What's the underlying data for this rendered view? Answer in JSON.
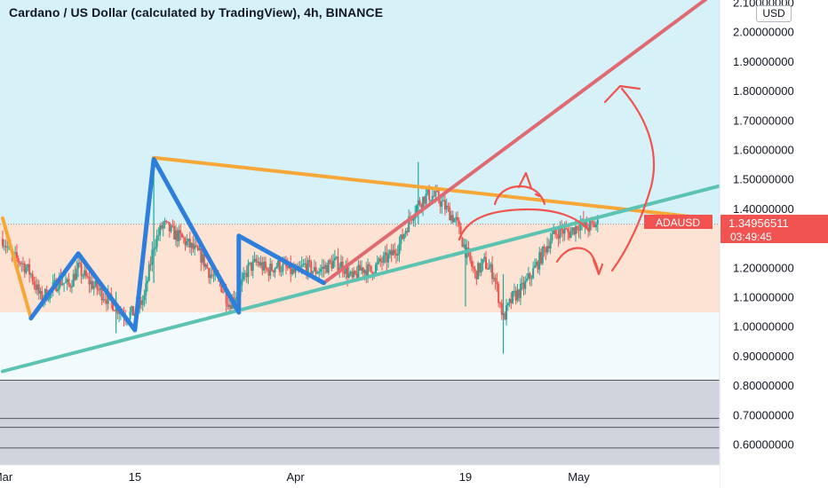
{
  "title": "Cardano / US Dollar (calculated by TradingView), 4h, BINANCE",
  "currency": "USD",
  "symbol_tag": "ADAUSD",
  "last_price": "1.34956511",
  "countdown": "03:49:45",
  "colors": {
    "band_blue": "#d6f2f8",
    "band_peach": "#fde3d3",
    "band_white": "#f1fbfd",
    "band_gray": "#d1d4dc",
    "candle_up": "#26a69a",
    "candle_down": "#ef5350",
    "tri_orange": "#f7a738",
    "blue_zigzag": "#2d7fdb",
    "teal_line": "#5cc2b1",
    "red_line": "#e06a71",
    "hand_red": "#f0544f",
    "price_tag": "#f05350"
  },
  "chart_data": {
    "type": "candlestick",
    "title": "Cardano / US Dollar (calculated by TradingView), 4h, BINANCE",
    "xlabel": "",
    "ylabel": "",
    "x_ticks": [
      "Mar",
      "15",
      "Apr",
      "19",
      "May"
    ],
    "y_ticks": [
      "0.60000000",
      "0.70000000",
      "0.80000000",
      "0.90000000",
      "1.00000000",
      "1.10000000",
      "1.20000000",
      "1.30000000",
      "1.40000000",
      "1.50000000",
      "1.60000000",
      "1.70000000",
      "1.80000000",
      "1.90000000",
      "2.00000000",
      "2.10000000"
    ],
    "ylim": [
      0.51,
      2.15
    ],
    "xlim": [
      "2021-03-01",
      "2021-05-16"
    ],
    "grid": false,
    "zones": [
      {
        "from": 1.05,
        "to": 2.15,
        "color": "#d6f2f8"
      },
      {
        "from": 1.05,
        "to": 1.35,
        "color": "#fde3d3"
      },
      {
        "from": 0.82,
        "to": 1.05,
        "color": "#f1fbfd"
      },
      {
        "from": 0.51,
        "to": 0.82,
        "color": "#d1d4dc"
      }
    ],
    "horizontal_lines": [
      0.82,
      0.69,
      0.66,
      0.59
    ],
    "price_path": [
      [
        "2021-03-01",
        1.3
      ],
      [
        "2021-03-02",
        1.24
      ],
      [
        "2021-03-03",
        1.22
      ],
      [
        "2021-03-04",
        1.18
      ],
      [
        "2021-03-05",
        1.1
      ],
      [
        "2021-03-06",
        1.12
      ],
      [
        "2021-03-07",
        1.16
      ],
      [
        "2021-03-08",
        1.14
      ],
      [
        "2021-03-09",
        1.2
      ],
      [
        "2021-03-10",
        1.16
      ],
      [
        "2021-03-11",
        1.13
      ],
      [
        "2021-03-12",
        1.1
      ],
      [
        "2021-03-13",
        1.07
      ],
      [
        "2021-03-14",
        1.04
      ],
      [
        "2021-03-15",
        1.05
      ],
      [
        "2021-03-16",
        1.1
      ],
      [
        "2021-03-17",
        1.28
      ],
      [
        "2021-03-18",
        1.35
      ],
      [
        "2021-03-19",
        1.32
      ],
      [
        "2021-03-20",
        1.3
      ],
      [
        "2021-03-21",
        1.27
      ],
      [
        "2021-03-22",
        1.24
      ],
      [
        "2021-03-23",
        1.18
      ],
      [
        "2021-03-24",
        1.15
      ],
      [
        "2021-03-25",
        1.08
      ],
      [
        "2021-03-26",
        1.12
      ],
      [
        "2021-03-27",
        1.2
      ],
      [
        "2021-03-28",
        1.22
      ],
      [
        "2021-03-29",
        1.19
      ],
      [
        "2021-03-30",
        1.21
      ],
      [
        "2021-03-31",
        1.2
      ],
      [
        "2021-04-01",
        1.18
      ],
      [
        "2021-04-02",
        1.21
      ],
      [
        "2021-04-03",
        1.19
      ],
      [
        "2021-04-04",
        1.2
      ],
      [
        "2021-04-05",
        1.22
      ],
      [
        "2021-04-06",
        1.21
      ],
      [
        "2021-04-07",
        1.16
      ],
      [
        "2021-04-08",
        1.2
      ],
      [
        "2021-04-09",
        1.19
      ],
      [
        "2021-04-10",
        1.22
      ],
      [
        "2021-04-11",
        1.24
      ],
      [
        "2021-04-12",
        1.28
      ],
      [
        "2021-04-13",
        1.36
      ],
      [
        "2021-04-14",
        1.42
      ],
      [
        "2021-04-15",
        1.45
      ],
      [
        "2021-04-16",
        1.44
      ],
      [
        "2021-04-17",
        1.4
      ],
      [
        "2021-04-18",
        1.36
      ],
      [
        "2021-04-19",
        1.26
      ],
      [
        "2021-04-20",
        1.18
      ],
      [
        "2021-04-21",
        1.22
      ],
      [
        "2021-04-22",
        1.18
      ],
      [
        "2021-04-23",
        1.03
      ],
      [
        "2021-04-24",
        1.1
      ],
      [
        "2021-04-25",
        1.13
      ],
      [
        "2021-04-26",
        1.18
      ],
      [
        "2021-04-27",
        1.24
      ],
      [
        "2021-04-28",
        1.3
      ],
      [
        "2021-04-29",
        1.33
      ],
      [
        "2021-04-30",
        1.32
      ],
      [
        "2021-05-01",
        1.35
      ],
      [
        "2021-05-02",
        1.34
      ],
      [
        "2021-05-03",
        1.35
      ]
    ],
    "spikes": [
      {
        "date": "2021-03-17",
        "low": 1.15,
        "high": 1.58
      },
      {
        "date": "2021-04-14",
        "low": 1.35,
        "high": 1.56
      },
      {
        "date": "2021-04-19",
        "low": 1.07,
        "high": 1.3
      },
      {
        "date": "2021-04-23",
        "low": 0.91,
        "high": 1.18
      },
      {
        "date": "2021-03-13",
        "low": 0.98,
        "high": 1.12
      }
    ],
    "drawings": [
      {
        "name": "descending-resistance",
        "color": "#f7a738",
        "points": [
          [
            "2021-03-17",
            1.575
          ],
          [
            "2021-05-13",
            1.375
          ]
        ]
      },
      {
        "name": "early-descent",
        "color": "#f7a738",
        "points": [
          [
            "2021-03-01",
            1.37
          ],
          [
            "2021-03-04",
            1.03
          ]
        ]
      },
      {
        "name": "ascending-support",
        "color": "#5cc2b1",
        "points": [
          [
            "2021-03-01",
            0.85
          ],
          [
            "2021-05-16",
            1.48
          ]
        ]
      },
      {
        "name": "steep-uptrend",
        "color": "#e06a71",
        "points": [
          [
            "2021-04-04",
            1.15
          ],
          [
            "2021-05-16",
            2.15
          ]
        ]
      },
      {
        "name": "zigzag-1",
        "color": "#2d7fdb",
        "points": [
          [
            "2021-03-04",
            1.03
          ],
          [
            "2021-03-09",
            1.25
          ],
          [
            "2021-03-15",
            0.99
          ],
          [
            "2021-03-17",
            1.57
          ],
          [
            "2021-03-26",
            1.05
          ]
        ]
      },
      {
        "name": "zigzag-2",
        "color": "#2d7fdb",
        "points": [
          [
            "2021-03-26",
            1.06
          ],
          [
            "2021-03-26",
            1.31
          ],
          [
            "2021-04-04",
            1.15
          ]
        ]
      }
    ],
    "last_price": 1.34956511
  }
}
